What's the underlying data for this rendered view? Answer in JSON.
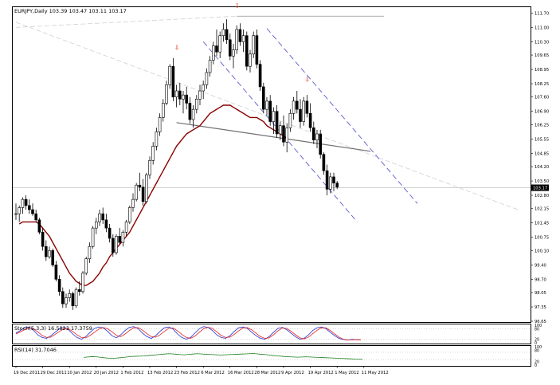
{
  "header": {
    "symbol": "EURJPY,Daily",
    "ohlc": "103.39 103.47 103.11 103.17"
  },
  "colors": {
    "grid": "#c0c0c0",
    "candle_up": "#ffffff",
    "candle_down": "#000000",
    "ma": "#8b0000",
    "neckline": "#707070",
    "channel": "#5a5ad0",
    "peak_arrow": "#e03000",
    "stoch_main": "#2030d0",
    "stoch_signal": "#e02020",
    "rsi": "#208020"
  },
  "chart_data": [
    {
      "type": "candlestick",
      "title": "EURJPY,Daily",
      "y_axis_ticks": [
        "111.70",
        "111.00",
        "110.30",
        "109.65",
        "108.95",
        "108.25",
        "107.60",
        "106.90",
        "106.25",
        "105.55",
        "104.85",
        "104.20",
        "103.50",
        "102.80",
        "102.15",
        "101.45",
        "100.75",
        "100.10",
        "99.40",
        "98.70",
        "98.05",
        "97.35",
        "96.65"
      ],
      "ylim": [
        96.65,
        111.95
      ],
      "current_price_label": "103.17",
      "x_tick_labels": [
        "19 Dec 2011",
        "29 Dec 2011",
        "10 Jan 2012",
        "20 Jan 2012",
        "1 Feb 2012",
        "13 Feb 2012",
        "23 Feb 2012",
        "6 Mar 2012",
        "16 Mar 2012",
        "28 Mar 2012",
        "9 Apr 2012",
        "19 Apr 2012",
        "1 May 2012",
        "11 May 2012"
      ],
      "x_tick_index": [
        0,
        8,
        16,
        24,
        32,
        40,
        48,
        56,
        64,
        72,
        80,
        88,
        96,
        104
      ],
      "candles": [
        [
          101.9,
          102.4,
          101.6,
          101.9
        ],
        [
          101.9,
          102.3,
          101.5,
          102.2
        ],
        [
          102.2,
          102.7,
          101.9,
          102.6
        ],
        [
          102.6,
          102.8,
          102.1,
          102.3
        ],
        [
          102.3,
          102.6,
          101.9,
          102.1
        ],
        [
          102.1,
          102.4,
          101.8,
          101.9
        ],
        [
          101.9,
          102.1,
          101.5,
          101.6
        ],
        [
          101.6,
          101.7,
          100.9,
          101.0
        ],
        [
          101.0,
          101.2,
          100.1,
          100.3
        ],
        [
          100.3,
          100.6,
          99.6,
          99.8
        ],
        [
          99.8,
          100.3,
          99.7,
          100.1
        ],
        [
          100.1,
          100.2,
          99.3,
          99.4
        ],
        [
          99.4,
          99.6,
          98.6,
          98.7
        ],
        [
          98.7,
          98.9,
          97.9,
          98.1
        ],
        [
          98.1,
          98.3,
          97.3,
          97.5
        ],
        [
          97.5,
          98.0,
          97.3,
          97.8
        ],
        [
          97.8,
          98.2,
          97.6,
          98.0
        ],
        [
          98.0,
          98.1,
          97.2,
          97.4
        ],
        [
          97.4,
          98.3,
          97.3,
          98.2
        ],
        [
          98.2,
          98.6,
          97.9,
          98.1
        ],
        [
          98.1,
          99.1,
          98.0,
          99.0
        ],
        [
          99.0,
          99.8,
          98.9,
          99.7
        ],
        [
          99.7,
          100.5,
          99.5,
          100.3
        ],
        [
          100.3,
          101.3,
          100.2,
          101.2
        ],
        [
          101.2,
          101.7,
          100.9,
          101.5
        ],
        [
          101.5,
          102.1,
          101.3,
          101.9
        ],
        [
          101.9,
          102.2,
          101.4,
          101.6
        ],
        [
          101.6,
          101.9,
          101.0,
          101.2
        ],
        [
          101.2,
          101.4,
          100.5,
          100.7
        ],
        [
          100.7,
          100.9,
          99.8,
          100.0
        ],
        [
          100.0,
          100.9,
          99.9,
          100.8
        ],
        [
          100.8,
          101.2,
          100.4,
          100.5
        ],
        [
          100.5,
          101.1,
          100.3,
          101.0
        ],
        [
          101.0,
          101.6,
          100.8,
          101.5
        ],
        [
          101.5,
          102.3,
          101.4,
          102.2
        ],
        [
          102.2,
          102.9,
          102.0,
          102.6
        ],
        [
          102.6,
          103.4,
          102.5,
          103.3
        ],
        [
          103.3,
          103.9,
          103.0,
          103.2
        ],
        [
          103.2,
          103.6,
          102.3,
          102.5
        ],
        [
          102.5,
          103.9,
          102.4,
          103.8
        ],
        [
          103.8,
          104.7,
          103.6,
          104.5
        ],
        [
          104.5,
          105.4,
          104.3,
          105.2
        ],
        [
          105.2,
          106.1,
          105.0,
          105.9
        ],
        [
          105.9,
          106.8,
          105.7,
          106.6
        ],
        [
          106.6,
          107.5,
          106.4,
          107.3
        ],
        [
          107.3,
          108.4,
          107.2,
          108.2
        ],
        [
          108.2,
          109.2,
          108.0,
          109.1
        ],
        [
          109.1,
          109.5,
          107.4,
          107.6
        ],
        [
          107.6,
          108.2,
          107.1,
          107.9
        ],
        [
          107.9,
          108.3,
          107.2,
          107.5
        ],
        [
          107.5,
          107.9,
          106.8,
          107.7
        ],
        [
          107.7,
          108.1,
          107.0,
          107.3
        ],
        [
          107.3,
          107.6,
          106.3,
          106.5
        ],
        [
          106.5,
          107.2,
          106.1,
          107.0
        ],
        [
          107.0,
          107.7,
          106.8,
          107.5
        ],
        [
          107.5,
          108.2,
          107.2,
          107.9
        ],
        [
          107.9,
          108.4,
          107.5,
          108.2
        ],
        [
          108.2,
          109.0,
          108.0,
          108.8
        ],
        [
          108.8,
          109.6,
          108.6,
          109.4
        ],
        [
          109.4,
          110.3,
          109.2,
          110.1
        ],
        [
          110.1,
          110.9,
          109.6,
          109.8
        ],
        [
          109.8,
          110.8,
          109.5,
          110.6
        ],
        [
          110.6,
          111.2,
          110.3,
          110.9
        ],
        [
          110.9,
          111.4,
          110.2,
          110.4
        ],
        [
          110.4,
          110.7,
          109.4,
          109.6
        ],
        [
          109.6,
          110.2,
          109.0,
          109.9
        ],
        [
          109.9,
          111.1,
          109.7,
          110.9
        ],
        [
          110.9,
          111.2,
          110.1,
          110.3
        ],
        [
          110.3,
          110.9,
          109.8,
          110.6
        ],
        [
          110.6,
          110.8,
          108.9,
          109.1
        ],
        [
          109.1,
          109.9,
          108.8,
          109.7
        ],
        [
          109.7,
          110.8,
          109.5,
          110.6
        ],
        [
          110.6,
          110.9,
          109.0,
          109.2
        ],
        [
          109.2,
          109.4,
          107.9,
          108.1
        ],
        [
          108.1,
          108.3,
          106.8,
          107.0
        ],
        [
          107.0,
          107.6,
          106.7,
          107.4
        ],
        [
          107.4,
          107.7,
          106.2,
          106.4
        ],
        [
          106.4,
          107.1,
          105.8,
          106.9
        ],
        [
          106.9,
          107.2,
          105.6,
          105.8
        ],
        [
          105.8,
          106.4,
          105.5,
          106.2
        ],
        [
          106.2,
          106.7,
          105.2,
          105.4
        ],
        [
          105.4,
          106.3,
          104.9,
          106.1
        ],
        [
          106.1,
          107.0,
          105.9,
          106.8
        ],
        [
          106.8,
          107.6,
          106.5,
          107.4
        ],
        [
          107.4,
          107.9,
          106.8,
          107.0
        ],
        [
          107.0,
          107.5,
          106.1,
          106.4
        ],
        [
          106.4,
          107.6,
          106.2,
          107.4
        ],
        [
          107.4,
          107.7,
          106.6,
          106.8
        ],
        [
          106.8,
          107.3,
          105.9,
          106.1
        ],
        [
          106.1,
          106.4,
          105.3,
          105.5
        ],
        [
          105.5,
          106.0,
          105.1,
          105.8
        ],
        [
          105.8,
          106.0,
          104.6,
          104.8
        ],
        [
          104.8,
          104.9,
          103.8,
          104.0
        ],
        [
          104.0,
          104.3,
          102.8,
          103.1
        ],
        [
          103.1,
          103.9,
          102.9,
          103.7
        ],
        [
          103.7,
          103.9,
          103.0,
          103.4
        ],
        [
          103.4,
          103.5,
          103.1,
          103.2
        ]
      ],
      "moving_average": [
        101.4,
        101.5,
        101.5,
        101.5,
        101.5,
        101.5,
        101.4,
        101.2,
        101.0,
        100.8,
        100.5,
        100.2,
        99.9,
        99.6,
        99.3,
        99.0,
        98.8,
        98.6,
        98.5,
        98.4,
        98.4,
        98.5,
        98.6,
        98.8,
        99.0,
        99.3,
        99.5,
        99.8,
        100.0,
        100.2,
        100.4,
        100.6,
        100.8,
        101.0,
        101.3,
        101.6,
        101.9,
        102.2,
        102.5,
        102.8,
        103.1,
        103.4,
        103.7,
        104.0,
        104.3,
        104.6,
        104.9,
        105.2,
        105.4,
        105.6,
        105.8,
        105.9,
        106.0,
        106.1,
        106.2,
        106.4,
        106.6,
        106.8,
        106.9,
        107.0,
        107.1,
        107.2,
        107.2,
        107.2,
        107.1,
        107.0,
        106.9,
        106.8,
        106.7,
        106.6,
        106.6,
        106.6,
        106.5,
        106.4,
        106.2,
        106.1,
        106.0,
        105.9,
        105.8,
        105.7,
        105.6
      ]
    },
    {
      "type": "line",
      "title": "Stoch(5,3,3) 16.5823 17.3759",
      "y_axis_ticks": [
        "100",
        "80",
        "20",
        "0"
      ],
      "ylim": [
        0,
        100
      ],
      "series": [
        {
          "values": [
            55,
            70,
            85,
            90,
            72,
            45,
            30,
            25,
            40,
            60,
            80,
            88,
            75,
            50,
            30,
            20,
            35,
            60,
            82,
            90,
            85,
            65,
            40,
            28,
            45,
            70,
            88,
            92,
            80,
            55,
            35,
            25,
            40,
            65,
            85,
            90,
            78,
            50,
            30,
            20,
            30,
            55,
            80,
            92,
            88,
            70,
            45,
            30,
            25,
            40,
            65,
            85,
            90,
            82,
            60,
            40,
            25,
            20,
            35,
            60,
            82,
            88,
            75,
            55,
            35,
            20,
            25,
            45,
            70,
            86,
            90,
            80,
            60,
            40,
            25,
            18,
            15,
            20,
            17,
            16.6
          ]
        },
        {
          "values": [
            50,
            62,
            75,
            85,
            80,
            62,
            42,
            30,
            32,
            48,
            65,
            80,
            80,
            64,
            45,
            30,
            28,
            42,
            60,
            78,
            86,
            80,
            62,
            42,
            35,
            50,
            70,
            85,
            86,
            72,
            52,
            35,
            32,
            45,
            65,
            82,
            84,
            68,
            48,
            30,
            25,
            38,
            60,
            80,
            88,
            82,
            62,
            42,
            30,
            32,
            48,
            68,
            84,
            86,
            74,
            54,
            35,
            25,
            28,
            45,
            68,
            84,
            82,
            66,
            46,
            28,
            22,
            32,
            52,
            72,
            85,
            85,
            70,
            50,
            32,
            20,
            16,
            17,
            18,
            17.4
          ]
        }
      ]
    },
    {
      "type": "line",
      "title": "RSI(14) 31.7046",
      "y_axis_ticks": [
        "100",
        "80",
        "20",
        "0"
      ],
      "ylim": [
        0,
        100
      ],
      "series": [
        {
          "values": [
            42,
            44,
            46,
            45,
            43,
            40,
            38,
            37,
            38,
            40,
            42,
            45,
            47,
            48,
            49,
            50,
            52,
            54,
            56,
            58,
            60,
            62,
            61,
            59,
            57,
            56,
            58,
            60,
            62,
            61,
            59,
            58,
            57,
            56,
            55,
            56,
            57,
            58,
            59,
            60,
            61,
            62,
            63,
            61,
            59,
            57,
            55,
            52,
            50,
            48,
            46,
            45,
            44,
            43,
            44,
            45,
            44,
            43,
            42,
            41,
            40,
            39,
            38,
            37,
            36,
            35,
            34,
            33,
            32,
            31.7
          ]
        }
      ]
    }
  ],
  "annotations": {
    "peak_arrows": [
      "⇩",
      "⇩",
      "⇩"
    ]
  }
}
